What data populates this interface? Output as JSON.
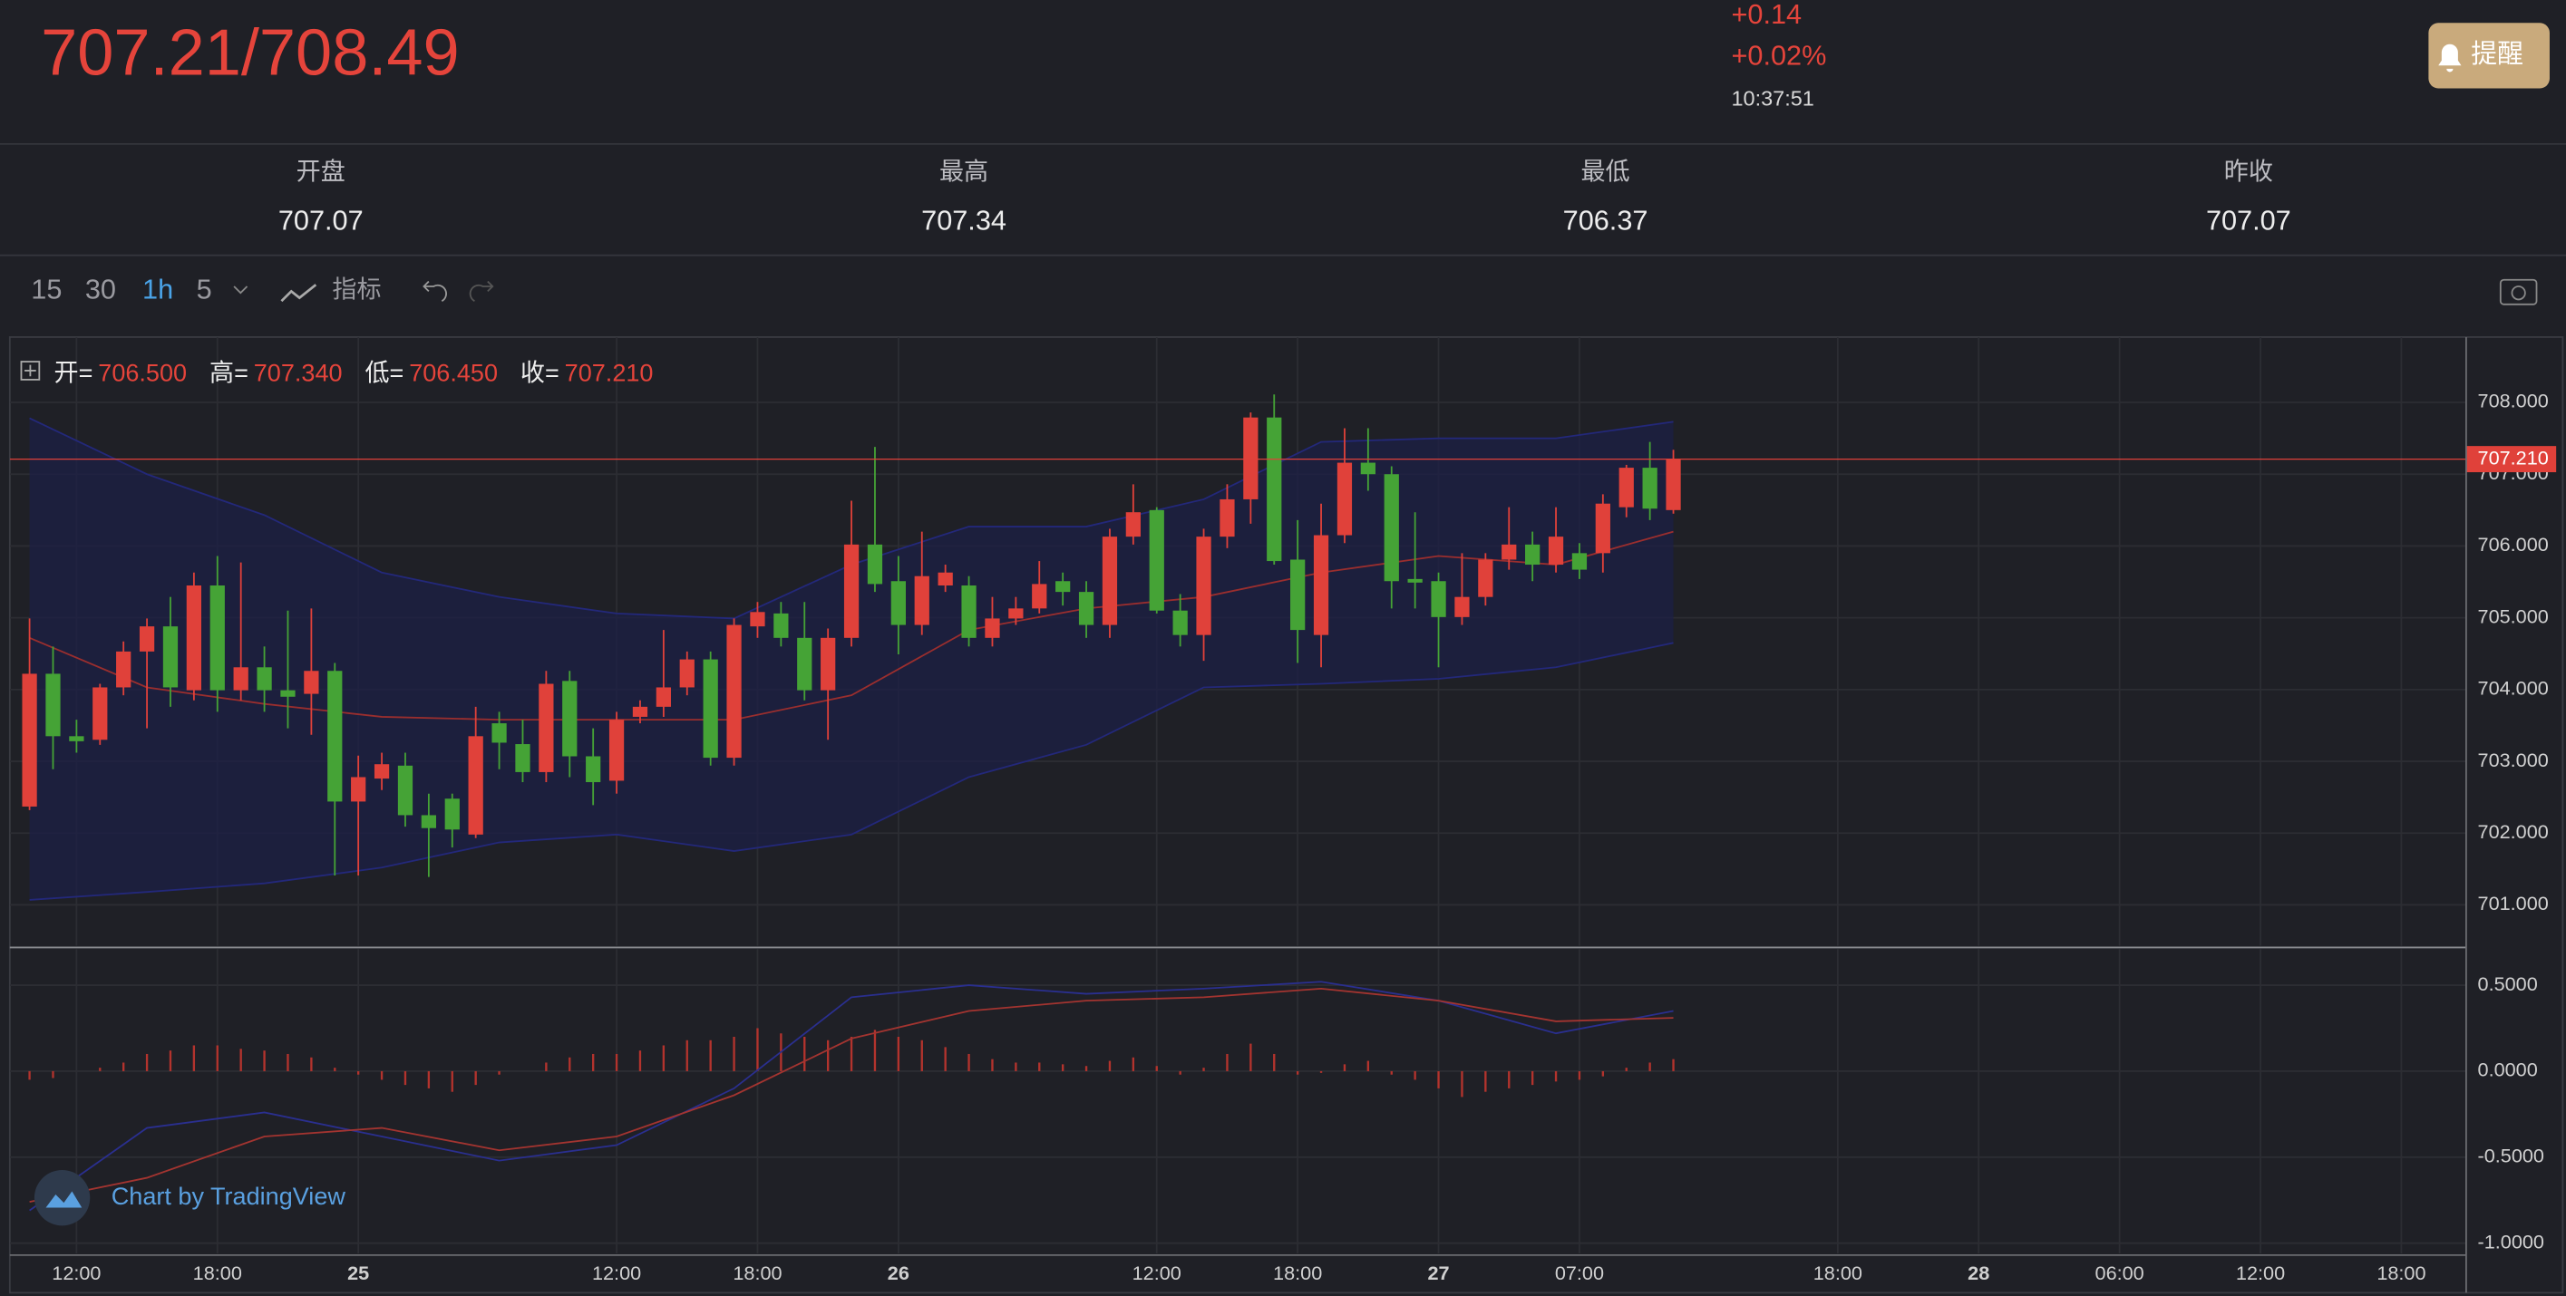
{
  "header": {
    "price": "707.21/708.49",
    "change": "+0.14",
    "change_pct": "+0.02%",
    "time": "10:37:51",
    "alert_button": "提醒"
  },
  "stats": [
    {
      "label": "开盘",
      "value": "707.07"
    },
    {
      "label": "最高",
      "value": "707.34"
    },
    {
      "label": "最低",
      "value": "706.37"
    },
    {
      "label": "昨收",
      "value": "707.07"
    }
  ],
  "toolbar": {
    "intervals": [
      "15",
      "30",
      "1h",
      "5"
    ],
    "active_interval": 2,
    "indicator": "指标"
  },
  "legend": {
    "items": [
      {
        "label": "开=",
        "value": "706.500"
      },
      {
        "label": "高=",
        "value": "707.340"
      },
      {
        "label": "低=",
        "value": "706.450"
      },
      {
        "label": "收=",
        "value": "707.210"
      }
    ]
  },
  "watermark": "Chart by TradingView",
  "chart_data": [
    {
      "type": "candlestick",
      "up_color": "#e0413a",
      "down_color": "#45a336",
      "xlim": [
        -0.84,
        103.76
      ],
      "ylim": [
        700.43,
        708.91
      ],
      "yticks": [
        {
          "value": 701,
          "label": "701.000"
        },
        {
          "value": 702,
          "label": "702.000"
        },
        {
          "value": 703,
          "label": "703.000"
        },
        {
          "value": 704,
          "label": "704.000"
        },
        {
          "value": 705,
          "label": "705.000"
        },
        {
          "value": 706,
          "label": "706.000"
        },
        {
          "value": 707,
          "label": "707.000"
        },
        {
          "value": 708,
          "label": "708.000"
        }
      ],
      "grid": true,
      "last_price": {
        "value": 707.21,
        "label": "707.210"
      },
      "open": [
        702.37,
        704.22,
        703.35,
        703.3,
        704.03,
        704.53,
        704.88,
        703.99,
        705.45,
        703.99,
        704.31,
        703.99,
        703.94,
        704.26,
        702.44,
        702.76,
        702.94,
        702.25,
        702.48,
        701.98,
        703.53,
        703.24,
        702.85,
        704.12,
        703.07,
        702.73,
        703.62,
        703.76,
        704.03,
        704.42,
        703.05,
        704.88,
        705.06,
        704.72,
        703.99,
        704.72,
        706.02,
        705.51,
        704.9,
        705.45,
        705.45,
        704.72,
        704.99,
        705.13,
        705.51,
        705.36,
        704.9,
        706.13,
        706.5,
        705.1,
        704.76,
        706.13,
        706.65,
        707.79,
        705.81,
        704.76,
        706.15,
        707.16,
        707.0,
        705.54,
        705.51,
        705.01,
        705.29,
        705.81,
        706.02,
        705.74,
        705.9,
        705.9,
        706.54,
        707.09,
        706.5
      ],
      "high": [
        704.99,
        704.6,
        703.58,
        704.08,
        704.67,
        704.99,
        705.29,
        705.63,
        705.86,
        705.77,
        704.6,
        705.1,
        705.13,
        704.37,
        703.08,
        703.12,
        703.12,
        702.55,
        702.55,
        703.76,
        703.69,
        703.58,
        704.26,
        704.26,
        703.46,
        703.69,
        703.85,
        704.83,
        704.53,
        704.53,
        704.99,
        705.22,
        705.22,
        705.22,
        704.85,
        706.63,
        707.38,
        705.86,
        706.2,
        705.74,
        705.58,
        705.29,
        705.29,
        705.79,
        705.63,
        705.51,
        706.24,
        706.86,
        706.54,
        705.33,
        706.24,
        706.86,
        707.86,
        708.11,
        706.36,
        706.59,
        707.64,
        707.64,
        707.11,
        706.47,
        705.63,
        705.9,
        705.9,
        706.54,
        706.2,
        706.54,
        706.04,
        706.72,
        707.13,
        707.45,
        707.34
      ],
      "low": [
        702.32,
        702.89,
        703.12,
        703.23,
        703.92,
        703.46,
        703.76,
        703.85,
        703.69,
        703.85,
        703.69,
        703.46,
        703.37,
        701.41,
        701.41,
        702.6,
        702.09,
        701.39,
        701.8,
        701.93,
        702.89,
        702.71,
        702.71,
        702.78,
        702.39,
        702.55,
        703.53,
        703.62,
        703.92,
        702.94,
        702.94,
        704.72,
        704.6,
        703.85,
        703.3,
        704.6,
        705.36,
        704.49,
        704.76,
        705.36,
        704.6,
        704.6,
        704.9,
        705.06,
        705.17,
        704.72,
        704.72,
        706.02,
        705.06,
        704.6,
        704.4,
        705.97,
        706.31,
        705.74,
        704.37,
        704.31,
        706.04,
        706.77,
        705.13,
        705.13,
        704.31,
        704.9,
        705.17,
        705.67,
        705.51,
        705.63,
        705.54,
        705.63,
        706.4,
        706.36,
        706.45
      ],
      "close": [
        704.22,
        703.35,
        703.28,
        704.03,
        704.53,
        704.88,
        704.03,
        705.45,
        703.99,
        704.31,
        703.99,
        703.9,
        704.26,
        702.44,
        702.78,
        702.96,
        702.25,
        702.07,
        702.05,
        703.35,
        703.26,
        702.85,
        704.08,
        703.07,
        702.71,
        703.58,
        703.76,
        704.03,
        704.42,
        703.05,
        704.9,
        705.08,
        704.72,
        703.99,
        704.72,
        706.02,
        705.47,
        704.9,
        705.58,
        705.63,
        704.72,
        704.99,
        705.13,
        705.47,
        705.36,
        704.9,
        706.13,
        706.47,
        705.1,
        704.76,
        706.13,
        706.65,
        707.79,
        705.79,
        704.83,
        706.15,
        707.16,
        707.0,
        705.51,
        705.49,
        705.01,
        705.29,
        705.81,
        706.02,
        705.74,
        706.13,
        705.67,
        706.59,
        707.09,
        706.52,
        707.21
      ],
      "bands": {
        "x": [
          0,
          5,
          10,
          15,
          20,
          25,
          30,
          35,
          40,
          45,
          50,
          55,
          60,
          65,
          70
        ],
        "fill": "#1c1f45",
        "line_color": "#23287a",
        "middle_color": "#9a2e2e",
        "upper": [
          707.78,
          707.0,
          706.43,
          705.63,
          705.29,
          705.06,
          704.99,
          705.74,
          706.27,
          706.27,
          706.65,
          707.45,
          707.5,
          707.5,
          707.73
        ],
        "middle": [
          704.72,
          704.03,
          703.8,
          703.62,
          703.58,
          703.58,
          703.58,
          703.92,
          704.83,
          705.13,
          705.29,
          705.63,
          705.86,
          705.74,
          706.2
        ],
        "lower": [
          701.07,
          701.18,
          701.3,
          701.52,
          701.87,
          701.98,
          701.75,
          701.98,
          702.78,
          703.23,
          704.03,
          704.08,
          704.15,
          704.31,
          704.65
        ]
      }
    },
    {
      "type": "macd",
      "xlim": [
        -0.84,
        103.76
      ],
      "ylim": [
        -1.06,
        0.71
      ],
      "yticks": [
        {
          "value": 0.5,
          "label": "0.5000"
        },
        {
          "value": 0,
          "label": "0.0000"
        },
        {
          "value": -0.5,
          "label": "-0.5000"
        },
        {
          "value": -1,
          "label": "-1.0000"
        }
      ],
      "xticks": [
        {
          "value": 2,
          "label": "12:00"
        },
        {
          "value": 8,
          "label": "18:00"
        },
        {
          "value": 14,
          "label": "25"
        },
        {
          "value": 25,
          "label": "12:00"
        },
        {
          "value": 31,
          "label": "18:00"
        },
        {
          "value": 37,
          "label": "26"
        },
        {
          "value": 48,
          "label": "12:00"
        },
        {
          "value": 54,
          "label": "18:00"
        },
        {
          "value": 60,
          "label": "27"
        },
        {
          "value": 66,
          "label": "07:00"
        },
        {
          "value": 77,
          "label": "18:00"
        },
        {
          "value": 83,
          "label": "28"
        },
        {
          "value": 89,
          "label": "06:00"
        },
        {
          "value": 95,
          "label": "12:00"
        },
        {
          "value": 101,
          "label": "18:00"
        }
      ],
      "histogram": {
        "color": "#b3332d",
        "values": [
          -0.05,
          -0.04,
          0,
          0.02,
          0.05,
          0.1,
          0.12,
          0.15,
          0.15,
          0.13,
          0.12,
          0.1,
          0.08,
          0.02,
          -0.02,
          -0.05,
          -0.08,
          -0.1,
          -0.12,
          -0.08,
          -0.02,
          0,
          0.05,
          0.08,
          0.1,
          0.1,
          0.12,
          0.15,
          0.18,
          0.18,
          0.2,
          0.25,
          0.22,
          0.2,
          0.18,
          0.2,
          0.24,
          0.2,
          0.18,
          0.14,
          0.1,
          0.07,
          0.05,
          0.05,
          0.04,
          0.03,
          0.06,
          0.08,
          0.03,
          -0.02,
          0.02,
          0.1,
          0.16,
          0.1,
          -0.02,
          -0.01,
          0.04,
          0.06,
          -0.02,
          -0.05,
          -0.1,
          -0.15,
          -0.12,
          -0.1,
          -0.08,
          -0.06,
          -0.05,
          -0.03,
          0.02,
          0.05,
          0.07
        ]
      },
      "lines": {
        "x": [
          0,
          5,
          10,
          15,
          20,
          25,
          30,
          35,
          40,
          45,
          50,
          55,
          60,
          65,
          70
        ],
        "series": [
          {
            "color": "#2a2f8f",
            "values": [
              -0.81,
              -0.33,
              -0.24,
              -0.38,
              -0.52,
              -0.43,
              -0.1,
              0.43,
              0.5,
              0.45,
              0.48,
              0.52,
              0.41,
              0.22,
              0.35
            ]
          },
          {
            "color": "#a33430",
            "values": [
              -0.76,
              -0.62,
              -0.38,
              -0.33,
              -0.46,
              -0.38,
              -0.14,
              0.19,
              0.35,
              0.41,
              0.43,
              0.48,
              0.41,
              0.29,
              0.31
            ]
          }
        ]
      }
    }
  ]
}
